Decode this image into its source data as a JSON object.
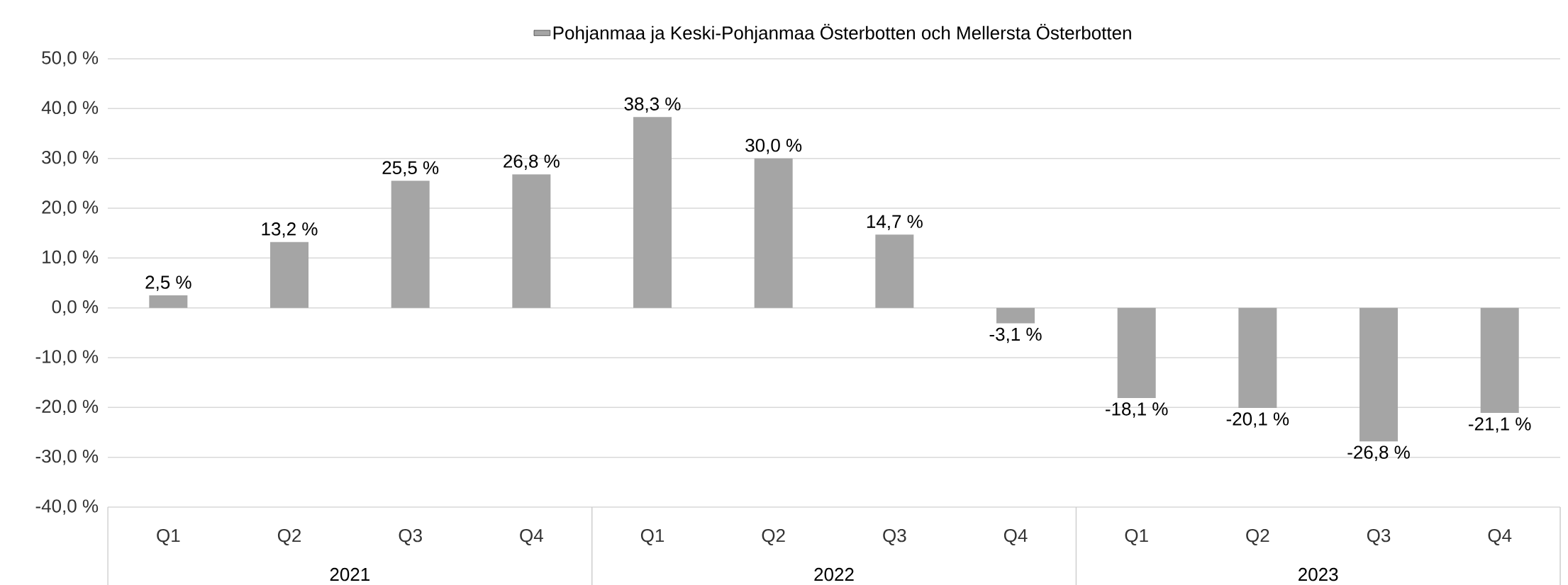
{
  "chart_data": {
    "type": "bar",
    "categories": [
      "Q1",
      "Q2",
      "Q3",
      "Q4",
      "Q1",
      "Q2",
      "Q3",
      "Q4",
      "Q1",
      "Q2",
      "Q3",
      "Q4"
    ],
    "series": [
      {
        "name": "Pohjanmaa ja Keski-Pohjanmaa Österbotten och Mellersta Österbotten",
        "color": "#a5a5a5",
        "values": [
          2.5,
          13.2,
          25.5,
          26.8,
          38.3,
          30.0,
          14.7,
          -3.1,
          -18.1,
          -20.1,
          -26.8,
          -21.1
        ],
        "value_labels": [
          "2,5 %",
          "13,2 %",
          "25,5 %",
          "26,8 %",
          "38,3 %",
          "30,0 %",
          "14,7 %",
          "-3,1 %",
          "-18,1 %",
          "-20,1 %",
          "-26,8 %",
          "-21,1 %"
        ]
      }
    ],
    "annotations": [
      "2021",
      "2022",
      "2023"
    ],
    "ylim": [
      -40,
      50
    ],
    "yticks": [
      {
        "value": -40,
        "label": "-40,0 %"
      },
      {
        "value": -30,
        "label": "-30,0 %"
      },
      {
        "value": -20,
        "label": "-20,0 %"
      },
      {
        "value": -10,
        "label": "-10,0 %"
      },
      {
        "value": 0,
        "label": "0,0 %"
      },
      {
        "value": 10,
        "label": "10,0 %"
      },
      {
        "value": 20,
        "label": "20,0 %"
      },
      {
        "value": 30,
        "label": "30,0 %"
      },
      {
        "value": 40,
        "label": "40,0 %"
      },
      {
        "value": 50,
        "label": "50,0 %"
      }
    ],
    "grid": "y",
    "legend": "top"
  }
}
